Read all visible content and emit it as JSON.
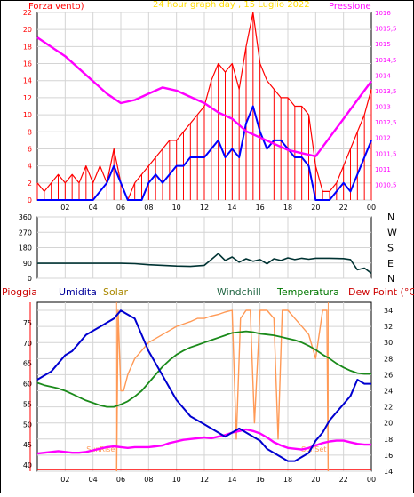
{
  "colors": {
    "background": "#ffffff",
    "frame": "#000000",
    "grid": "#d4d4d4",
    "wind_red": "#ff0000",
    "wind_blue": "#0000ff",
    "pressure": "#ff00ff",
    "direction": "#003333",
    "rain": "#ff0000",
    "humidity": "#0000d0",
    "solar": "#ff9955",
    "windchill": "#0a6b4a",
    "temperature": "#1a8a1a",
    "dew_point": "#ff00ff",
    "label_rain": "#cc0000",
    "label_humidity": "#000099",
    "label_solar": "#aa8800",
    "label_windchill": "#226644",
    "label_temperature": "#007700",
    "label_dew": "#cc0000",
    "sunrise_sunset": "#ff9955"
  },
  "header": {
    "left_label": "Forza vento)",
    "title": "24 hour graph day , 15 Luglio 2022",
    "right_label": "Pressione"
  },
  "bottom_header": {
    "rain": "Pioggia",
    "humidity": "Umidita",
    "solar": "Solar",
    "windchill": "Windchill",
    "temperature": "Temperatura",
    "dew_point": "Dew Point (°C)"
  },
  "x_ticks": [
    "02",
    "04",
    "06",
    "08",
    "10",
    "12",
    "14",
    "16",
    "18",
    "20",
    "22",
    "00"
  ],
  "sun_markers": {
    "sunrise": "SunRise",
    "sunset": "SunSet",
    "sunrise_hour": 5.7,
    "sunset_hour": 20.9
  },
  "chart_data": [
    {
      "type": "line",
      "id": "wind_pressure",
      "title": "24 hour graph day , 15 Luglio 2022",
      "xlabel": "",
      "ylabel_left": "Forza vento)",
      "ylabel_right": "Pressione",
      "xlim": [
        0,
        24
      ],
      "ylim_left": [
        0,
        22
      ],
      "ylim_right": [
        1010,
        1016
      ],
      "left_ticks": [
        "0",
        "2",
        "4",
        "6",
        "8",
        "10",
        "12",
        "14",
        "16",
        "18",
        "20",
        "22"
      ],
      "right_ticks": [
        "1010,5",
        "1011",
        "1011,5",
        "1012",
        "1012,5",
        "1013",
        "1013,5",
        "1014",
        "1014,5",
        "1015",
        "1015,5",
        "1016"
      ],
      "series": [
        {
          "name": "",
          "axis": "left",
          "style": "red-bars",
          "x": [
            0,
            0.5,
            1,
            1.5,
            2,
            2.5,
            3,
            3.5,
            4,
            4.5,
            5,
            5.5,
            6,
            6.5,
            7,
            7.5,
            8,
            8.5,
            9,
            9.5,
            10,
            10.5,
            11,
            11.5,
            12,
            12.5,
            13,
            13.5,
            14,
            14.5,
            15,
            15.5,
            16,
            16.5,
            17,
            17.5,
            18,
            18.5,
            19,
            19.5,
            20,
            20.5,
            21,
            21.5,
            22,
            22.5,
            23,
            23.5,
            24
          ],
          "values": [
            2,
            1,
            2,
            3,
            2,
            3,
            2,
            4,
            2,
            4,
            2,
            6,
            2,
            0,
            2,
            3,
            4,
            5,
            6,
            7,
            7,
            8,
            9,
            10,
            11,
            14,
            16,
            15,
            16,
            13,
            18,
            22,
            16,
            14,
            13,
            12,
            12,
            11,
            11,
            10,
            4,
            1,
            1,
            2,
            4,
            6,
            8,
            10,
            13
          ]
        },
        {
          "name": "",
          "axis": "left",
          "style": "blue-line",
          "x": [
            0,
            0.5,
            1,
            1.5,
            2,
            2.5,
            3,
            3.5,
            4,
            4.5,
            5,
            5.5,
            6,
            6.5,
            7,
            7.5,
            8,
            8.5,
            9,
            9.5,
            10,
            10.5,
            11,
            11.5,
            12,
            12.5,
            13,
            13.5,
            14,
            14.5,
            15,
            15.5,
            16,
            16.5,
            17,
            17.5,
            18,
            18.5,
            19,
            19.5,
            20,
            20.5,
            21,
            21.5,
            22,
            22.5,
            23,
            23.5,
            24
          ],
          "values": [
            0,
            0,
            0,
            0,
            0,
            0,
            0,
            0,
            0,
            1,
            2,
            4,
            2,
            0,
            0,
            0,
            2,
            3,
            2,
            3,
            4,
            4,
            5,
            5,
            5,
            6,
            7,
            5,
            6,
            5,
            9,
            11,
            8,
            6,
            7,
            7,
            6,
            5,
            5,
            4,
            0,
            0,
            0,
            1,
            2,
            1,
            3,
            5,
            7
          ]
        },
        {
          "name": "",
          "axis": "right",
          "style": "pressure-line",
          "x": [
            0,
            1,
            2,
            3,
            4,
            5,
            6,
            7,
            8,
            9,
            10,
            11,
            12,
            13,
            14,
            15,
            16,
            17,
            18,
            19,
            20,
            21,
            22,
            23,
            24
          ],
          "values": [
            1015.2,
            1014.9,
            1014.6,
            1014.2,
            1013.8,
            1013.4,
            1013.1,
            1013.2,
            1013.4,
            1013.6,
            1013.5,
            1013.3,
            1013.1,
            1012.8,
            1012.6,
            1012.2,
            1012.0,
            1011.8,
            1011.6,
            1011.5,
            1011.4,
            1012.0,
            1012.6,
            1013.2,
            1013.8
          ]
        }
      ]
    },
    {
      "type": "line",
      "id": "wind_direction",
      "xlim": [
        0,
        24
      ],
      "ylim": [
        0,
        360
      ],
      "left_ticks": [
        "0",
        "90",
        "180",
        "270",
        "360"
      ],
      "right_ticks": [
        "N",
        "E",
        "S",
        "W",
        "N"
      ],
      "series": [
        {
          "name": "",
          "x": [
            0,
            1,
            2,
            3,
            4,
            5,
            6,
            7,
            8,
            9,
            10,
            11,
            12,
            12.5,
            13,
            13.5,
            14,
            14.5,
            15,
            15.5,
            16,
            16.5,
            17,
            17.5,
            18,
            18.5,
            19,
            19.5,
            20,
            21,
            22,
            22.5,
            23,
            23.5,
            24
          ],
          "values": [
            88,
            88,
            88,
            88,
            88,
            88,
            88,
            86,
            80,
            76,
            72,
            70,
            76,
            110,
            145,
            105,
            125,
            95,
            115,
            100,
            110,
            85,
            115,
            105,
            120,
            110,
            118,
            112,
            118,
            118,
            116,
            110,
            50,
            60,
            30
          ]
        }
      ]
    },
    {
      "type": "line",
      "id": "humidity_temperature",
      "xlim": [
        0,
        24
      ],
      "ylim_left": [
        38.5,
        80
      ],
      "ylim_right": [
        14,
        35
      ],
      "left_ticks": [
        "40",
        "45",
        "50",
        "55",
        "60",
        "65",
        "70",
        "75"
      ],
      "right_ticks": [
        "14",
        "16",
        "18",
        "20",
        "22",
        "24",
        "26",
        "28",
        "30",
        "32",
        "34"
      ],
      "series": [
        {
          "name": "Umidita",
          "axis": "left",
          "x": [
            0,
            0.5,
            1,
            1.5,
            2,
            2.5,
            3,
            3.5,
            4,
            4.5,
            5,
            5.5,
            6,
            6.5,
            7,
            7.5,
            8,
            8.5,
            9,
            9.5,
            10,
            10.5,
            11,
            11.5,
            12,
            12.5,
            13,
            13.5,
            14,
            14.5,
            15,
            15.5,
            16,
            16.5,
            17,
            17.5,
            18,
            18.5,
            19,
            19.5,
            20,
            20.5,
            21,
            21.5,
            22,
            22.5,
            23,
            23.5,
            24
          ],
          "values": [
            61,
            62,
            63,
            65,
            67,
            68,
            70,
            72,
            73,
            74,
            75,
            76,
            78,
            77,
            76,
            72,
            68,
            65,
            62,
            59,
            56,
            54,
            52,
            51,
            50,
            49,
            48,
            47,
            48,
            49,
            48,
            47,
            46,
            44,
            43,
            42,
            41,
            41,
            42,
            43,
            46,
            48,
            51,
            53,
            55,
            57,
            61,
            60,
            60
          ]
        },
        {
          "name": "Solar",
          "axis": "right",
          "x": [
            5.7,
            5.8,
            6,
            6.2,
            6.5,
            7,
            7.5,
            8,
            8.5,
            9,
            9.5,
            10,
            10.5,
            11,
            11.5,
            12,
            12.5,
            13,
            13.5,
            14,
            14.3,
            14.6,
            15,
            15.3,
            15.6,
            16,
            16.5,
            17,
            17.3,
            17.6,
            18,
            18.5,
            19,
            19.5,
            20,
            20.5,
            20.8,
            20.9
          ],
          "values": [
            14,
            34,
            24,
            24,
            26,
            28,
            29,
            30,
            30.5,
            31,
            31.5,
            32,
            32.3,
            32.6,
            33,
            33,
            33.3,
            33.5,
            33.8,
            34,
            18,
            33,
            34,
            34,
            20,
            34,
            34,
            33,
            18,
            34,
            34,
            33,
            32,
            31,
            28,
            34,
            34,
            14
          ]
        },
        {
          "name": "Temperatura",
          "axis": "right",
          "x": [
            0,
            0.5,
            1,
            1.5,
            2,
            2.5,
            3,
            3.5,
            4,
            4.5,
            5,
            5.5,
            6,
            6.5,
            7,
            7.5,
            8,
            8.5,
            9,
            9.5,
            10,
            10.5,
            11,
            11.5,
            12,
            12.5,
            13,
            13.5,
            14,
            14.5,
            15,
            15.5,
            16,
            16.5,
            17,
            17.5,
            18,
            18.5,
            19,
            19.5,
            20,
            20.5,
            21,
            21.5,
            22,
            22.5,
            23,
            23.5,
            24
          ],
          "values": [
            25,
            24.7,
            24.5,
            24.3,
            24,
            23.6,
            23.2,
            22.8,
            22.5,
            22.2,
            22,
            22,
            22.3,
            22.7,
            23.3,
            24,
            25,
            26,
            27,
            27.8,
            28.5,
            29,
            29.4,
            29.7,
            30,
            30.3,
            30.6,
            30.9,
            31.2,
            31.3,
            31.4,
            31.3,
            31.1,
            31,
            30.9,
            30.7,
            30.5,
            30.3,
            30,
            29.6,
            29.1,
            28.5,
            28,
            27.4,
            26.9,
            26.5,
            26.2,
            26.1,
            26.1
          ]
        },
        {
          "name": "Dew Point (°C)",
          "axis": "right",
          "x": [
            0,
            0.5,
            1,
            1.5,
            2,
            2.5,
            3,
            3.5,
            4,
            4.5,
            5,
            5.5,
            6,
            6.5,
            7,
            7.5,
            8,
            8.5,
            9,
            9.5,
            10,
            10.5,
            11,
            11.5,
            12,
            12.5,
            13,
            13.5,
            14,
            14.5,
            15,
            15.5,
            16,
            16.5,
            17,
            17.5,
            18,
            18.5,
            19,
            19.5,
            20,
            20.5,
            21,
            21.5,
            22,
            22.5,
            23,
            23.5,
            24
          ],
          "values": [
            16.2,
            16.3,
            16.4,
            16.5,
            16.4,
            16.3,
            16.3,
            16.4,
            16.6,
            16.8,
            17,
            17.1,
            17,
            16.9,
            17,
            17,
            17,
            17.1,
            17.2,
            17.5,
            17.7,
            17.9,
            18,
            18.1,
            18.2,
            18.1,
            18.3,
            18.5,
            18.8,
            19,
            19.2,
            19,
            18.7,
            18.2,
            17.6,
            17.2,
            16.9,
            16.8,
            16.7,
            16.9,
            17.2,
            17.5,
            17.7,
            17.8,
            17.8,
            17.6,
            17.4,
            17.3,
            17.3
          ]
        }
      ]
    }
  ]
}
